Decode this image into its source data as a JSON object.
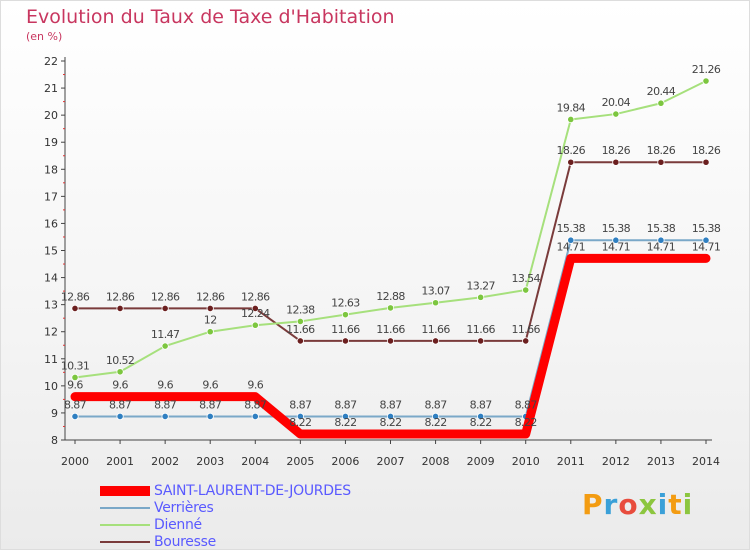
{
  "header": {
    "title": "Evolution du Taux de Taxe d'Habitation",
    "unit": "(en %)"
  },
  "logo": {
    "letters": [
      "P",
      "r",
      "o",
      "x",
      "i",
      "t",
      "i"
    ]
  },
  "chart_data": {
    "type": "line",
    "x": [
      "2000",
      "2001",
      "2002",
      "2003",
      "2004",
      "2005",
      "2006",
      "2007",
      "2008",
      "2009",
      "2010",
      "2011",
      "2012",
      "2013",
      "2014"
    ],
    "ylim": [
      8,
      22
    ],
    "yticks": [
      8,
      9,
      10,
      11,
      12,
      13,
      14,
      15,
      16,
      17,
      18,
      19,
      20,
      21,
      22
    ],
    "grid": false,
    "legend_position": "bottom-left",
    "series": [
      {
        "name": "SAINT-LAURENT-DE-JOURDES",
        "color": "#ff0000",
        "width": 9,
        "markers": false,
        "values": [
          9.6,
          9.6,
          9.6,
          9.6,
          9.6,
          8.22,
          8.22,
          8.22,
          8.22,
          8.22,
          8.22,
          14.71,
          14.71,
          14.71,
          14.71
        ]
      },
      {
        "name": "Verrières",
        "color": "#7aa8c8",
        "width": 2,
        "markers": true,
        "marker_color": "#2f7fc1",
        "values": [
          8.87,
          8.87,
          8.87,
          8.87,
          8.87,
          8.87,
          8.87,
          8.87,
          8.87,
          8.87,
          8.87,
          15.38,
          15.38,
          15.38,
          15.38
        ]
      },
      {
        "name": "Dienné",
        "color": "#a6e07c",
        "width": 2,
        "markers": true,
        "marker_color": "#7cc63f",
        "values": [
          10.31,
          10.52,
          11.47,
          12,
          12.24,
          12.38,
          12.63,
          12.88,
          13.07,
          13.27,
          13.54,
          19.84,
          20.04,
          20.44,
          21.26
        ]
      },
      {
        "name": "Bouresse",
        "color": "#7a3b3b",
        "width": 2,
        "markers": true,
        "marker_color": "#6b1f1f",
        "values": [
          12.86,
          12.86,
          12.86,
          12.86,
          12.86,
          11.66,
          11.66,
          11.66,
          11.66,
          11.66,
          11.66,
          18.26,
          18.26,
          18.26,
          18.26
        ]
      }
    ],
    "data_labels": {
      "SAINT-LAURENT-DE-JOURDES": [
        "9.6",
        "9.6",
        "9.6",
        "9.6",
        "9.6",
        "8.22",
        "8.22",
        "8.22",
        "8.22",
        "8.22",
        "8.22",
        "14.71",
        "14.71",
        "14.71",
        "14.71"
      ],
      "Verrières": [
        "8.87",
        "8.87",
        "8.87",
        "8.87",
        "8.87",
        "8.87",
        "8.87",
        "8.87",
        "8.87",
        "8.87",
        "8.87",
        "15.38",
        "15.38",
        "15.38",
        "15.38"
      ],
      "Dienné": [
        "10.31",
        "10.52",
        "11.47",
        "12",
        "12.24",
        "12.38",
        "12.63",
        "12.88",
        "13.07",
        "13.27",
        "13.54",
        "19.84",
        "20.04",
        "20.44",
        "21.26"
      ],
      "Bouresse": [
        "12.86",
        "12.86",
        "12.86",
        "12.86",
        "12.86",
        "11.66",
        "11.66",
        "11.66",
        "11.66",
        "11.66",
        "11.66",
        "18.26",
        "18.26",
        "18.26",
        "18.26"
      ]
    }
  }
}
